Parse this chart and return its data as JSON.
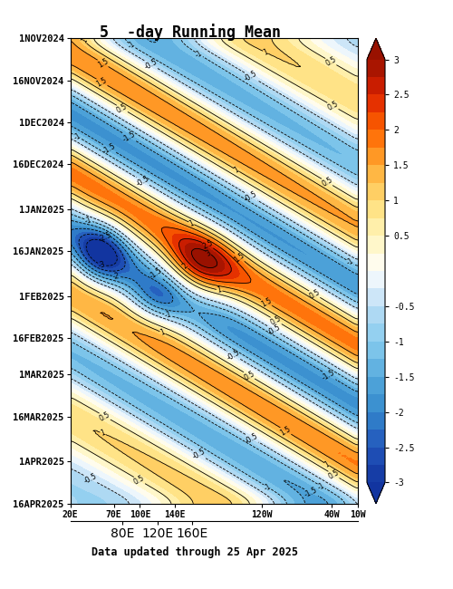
{
  "title": "5  -day Running Mean",
  "subtitle": "Data updated through 25 Apr 2025",
  "ytick_labels": [
    "1NOV2024",
    "16NOV2024",
    "1DEC2024",
    "16DEC2024",
    "1JAN2025",
    "16JAN2025",
    "1FEB2025",
    "16FEB2025",
    "1MAR2025",
    "16MAR2025",
    "1APR2025",
    "16APR2025"
  ],
  "xtick_labels_top": [
    "20E",
    "70E",
    "100E",
    "140E",
    "120W",
    "40W",
    "10W"
  ],
  "xtick_labels_bot": [
    "80E",
    "120E",
    "160E"
  ],
  "vmin": -3,
  "vmax": 3
}
